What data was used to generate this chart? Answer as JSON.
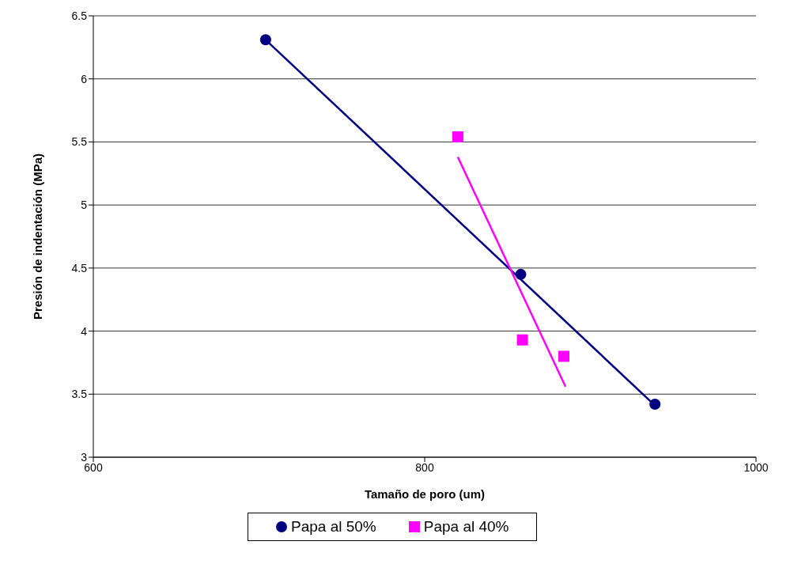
{
  "chart_data": {
    "type": "scatter",
    "xlabel": "Tamaño de poro (um)",
    "ylabel": "Presión de indentación (MPa)",
    "xlim": [
      600,
      1000
    ],
    "xticks": [
      600,
      800,
      1000
    ],
    "ylim": [
      3,
      6.5
    ],
    "yticks": [
      3,
      3.5,
      4,
      4.5,
      5,
      5.5,
      6,
      6.5
    ],
    "grid": "y",
    "legend": "bottom",
    "series": [
      {
        "name": "Papa al 50%",
        "marker": "circle",
        "color": "#000080",
        "x": [
          704,
          858,
          939
        ],
        "values": [
          6.31,
          4.45,
          3.42
        ]
      },
      {
        "name": "Papa al 40%",
        "marker": "square",
        "color": "#ff00ff",
        "x": [
          820,
          859,
          884
        ],
        "values": [
          5.54,
          3.93,
          3.8
        ]
      },
      {
        "type": "line",
        "marker": "none",
        "color": "#000080",
        "x": [
          704,
          939
        ],
        "values": [
          6.31,
          3.41
        ]
      },
      {
        "type": "line",
        "marker": "none",
        "color": "#ff00ff",
        "x": [
          820,
          885
        ],
        "values": [
          5.38,
          3.56
        ]
      }
    ]
  }
}
